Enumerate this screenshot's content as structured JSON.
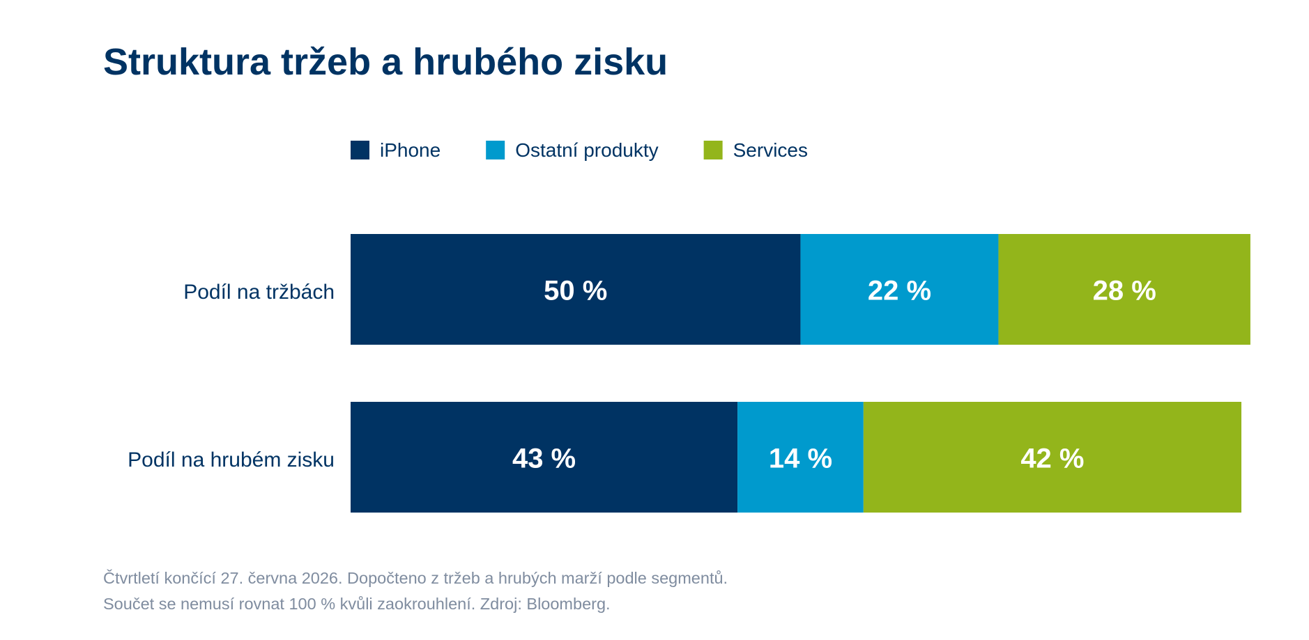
{
  "page": {
    "title": "Struktura tržeb a hrubého zisku",
    "footnote_line1": "Čtvrtletí končící 27. června 2026. Dopočteno z tržeb a hrubých marží podle segmentů.",
    "footnote_line2": "Součet se nemusí rovnat 100 % kvůli zaokrouhlení. Zdroj: Bloomberg."
  },
  "chart_data": {
    "type": "bar",
    "orientation": "horizontal",
    "stacked": true,
    "categories": [
      "Podíl na tržbách",
      "Podíl na hrubém zisku"
    ],
    "series": [
      {
        "name": "iPhone",
        "color": "#003363",
        "values": [
          50,
          43
        ],
        "labels": [
          "50 %",
          "43 %"
        ]
      },
      {
        "name": "Ostatní produkty",
        "color": "#009ACD",
        "values": [
          22,
          14
        ],
        "labels": [
          "22 %",
          "14 %"
        ]
      },
      {
        "name": "Services",
        "color": "#93B51B",
        "values": [
          28,
          42
        ],
        "labels": [
          "28 %",
          "42 %"
        ]
      }
    ],
    "xlim": [
      0,
      99
    ],
    "legend_position": "top",
    "grid": false,
    "value_label_color": "#ffffff",
    "category_label_color": "#003363"
  }
}
